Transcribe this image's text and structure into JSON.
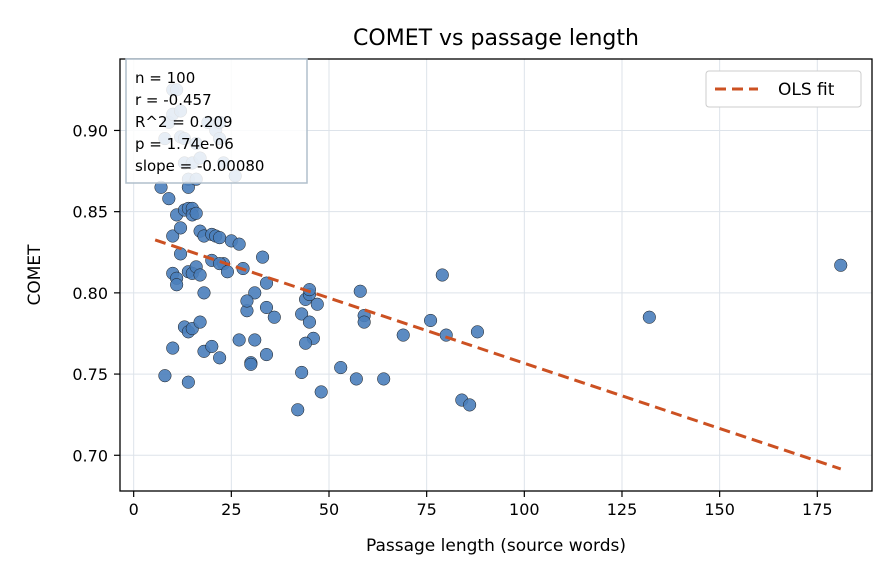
{
  "chart_data": {
    "type": "scatter",
    "title": "COMET vs passage length",
    "xlabel": "Passage length (source words)",
    "ylabel": "COMET",
    "xlim": [
      -3.5,
      189
    ],
    "ylim": [
      0.678,
      0.944
    ],
    "xticks": [
      0,
      25,
      50,
      75,
      100,
      125,
      150,
      175
    ],
    "xtick_labels": [
      "0",
      "25",
      "50",
      "75",
      "100",
      "125",
      "150",
      "175"
    ],
    "yticks": [
      0.7,
      0.75,
      0.8,
      0.85,
      0.9
    ],
    "ytick_labels": [
      "0.70",
      "0.75",
      "0.80",
      "0.85",
      "0.90"
    ],
    "grid": true,
    "stats_box": {
      "position": "top-left",
      "lines": [
        "n = 100",
        "r = -0.457",
        "R^2 = 0.209",
        "p = 1.74e-06",
        "slope = -0.00080"
      ]
    },
    "legend": {
      "position": "top-right",
      "entries": [
        "OLS fit"
      ]
    },
    "colors": {
      "points": "#4a7ebb",
      "point_edge": "#1a1a1a",
      "fit": "#cc5122",
      "grid": "#dde3ea",
      "stats_border": "#b0bfcc"
    },
    "fit_line": {
      "x": [
        5.5,
        181
      ],
      "y": [
        0.8326,
        0.6916
      ]
    },
    "points": {
      "x": [
        8,
        9,
        10,
        10,
        11,
        12,
        12,
        13,
        13,
        14,
        14,
        15,
        16,
        16,
        17,
        19,
        21,
        22,
        22,
        23,
        26,
        7,
        9,
        10,
        11,
        12,
        13,
        14,
        15,
        15,
        16,
        17,
        18,
        20,
        21,
        22,
        23,
        25,
        27,
        10,
        11,
        11,
        12,
        14,
        15,
        16,
        17,
        18,
        20,
        22,
        24,
        28,
        31,
        33,
        34,
        13,
        14,
        15,
        17,
        18,
        20,
        22,
        27,
        29,
        30,
        31,
        34,
        36,
        29,
        34,
        8,
        10,
        14,
        30,
        43,
        44,
        45,
        45,
        45,
        46,
        47,
        48,
        43,
        42,
        44,
        53,
        57,
        58,
        59,
        59,
        64,
        69,
        76,
        79,
        80,
        84,
        86,
        88,
        132,
        181
      ],
      "y": [
        0.895,
        0.905,
        0.91,
        0.925,
        0.925,
        0.912,
        0.896,
        0.895,
        0.88,
        0.87,
        0.865,
        0.88,
        0.87,
        0.892,
        0.883,
        0.905,
        0.9,
        0.895,
        0.905,
        0.88,
        0.872,
        0.865,
        0.858,
        0.835,
        0.848,
        0.84,
        0.851,
        0.852,
        0.852,
        0.848,
        0.849,
        0.838,
        0.835,
        0.836,
        0.835,
        0.834,
        0.818,
        0.832,
        0.83,
        0.812,
        0.809,
        0.805,
        0.824,
        0.813,
        0.812,
        0.816,
        0.811,
        0.8,
        0.82,
        0.818,
        0.813,
        0.815,
        0.8,
        0.822,
        0.806,
        0.779,
        0.776,
        0.778,
        0.782,
        0.764,
        0.767,
        0.76,
        0.771,
        0.789,
        0.757,
        0.771,
        0.791,
        0.785,
        0.795,
        0.762,
        0.749,
        0.766,
        0.745,
        0.756,
        0.787,
        0.796,
        0.799,
        0.782,
        0.802,
        0.772,
        0.793,
        0.739,
        0.751,
        0.728,
        0.769,
        0.754,
        0.747,
        0.801,
        0.786,
        0.782,
        0.747,
        0.774,
        0.783,
        0.811,
        0.774,
        0.734,
        0.731,
        0.776,
        0.785,
        0.817
      ]
    }
  }
}
